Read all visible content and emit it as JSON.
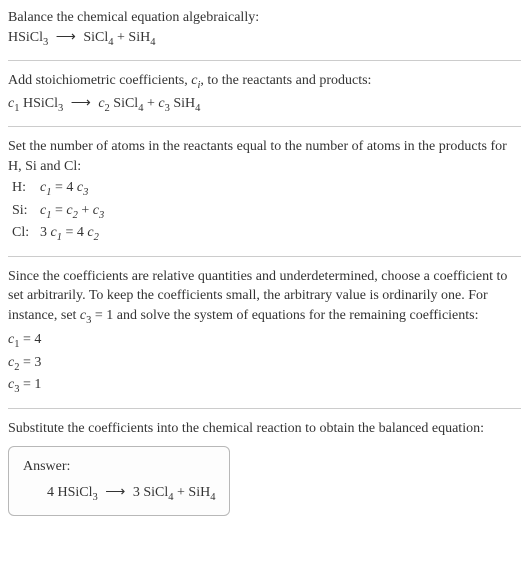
{
  "colors": {
    "text": "#333333",
    "divider": "#cccccc",
    "box_border": "#b8b8b8",
    "background": "#ffffff"
  },
  "typography": {
    "body_fontsize": 14,
    "sub_fontsize_ratio": 0.75,
    "font_family": "Georgia, serif"
  },
  "section1": {
    "line1": "Balance the chemical equation algebraically:",
    "eq_lhs": "HSiCl",
    "eq_lhs_sub": "3",
    "arrow": "⟶",
    "eq_rhs1": "SiCl",
    "eq_rhs1_sub": "4",
    "plus": " + ",
    "eq_rhs2": "SiH",
    "eq_rhs2_sub": "4"
  },
  "section2": {
    "line1a": "Add stoichiometric coefficients, ",
    "line1b": "c",
    "line1c": ", to the reactants and products:",
    "c1": "c",
    "c1sub": "1",
    "sp1": " HSiCl",
    "sp1sub": "3",
    "arrow": "⟶",
    "c2": "c",
    "c2sub": "2",
    "sp2": " SiCl",
    "sp2sub": "4",
    "plus": " + ",
    "c3": "c",
    "c3sub": "3",
    "sp3": " SiH",
    "sp3sub": "4"
  },
  "section3": {
    "line1": "Set the number of atoms in the reactants equal to the number of atoms in the products for H, Si and Cl:",
    "rows": [
      {
        "label": "H:",
        "c_left": "c",
        "c_left_sub": "1",
        "eq": " = 4",
        "c_right": "c",
        "c_right_sub": "3",
        "extra": ""
      },
      {
        "label": "Si:",
        "c_left": "c",
        "c_left_sub": "1",
        "eq": " = ",
        "c_right": "c",
        "c_right_sub": "2",
        "extra_plus": " + ",
        "c_right2": "c",
        "c_right2_sub": "3"
      },
      {
        "label": "Cl:",
        "pre": "3",
        "c_left": "c",
        "c_left_sub": "1",
        "eq": " = 4",
        "c_right": "c",
        "c_right_sub": "2",
        "extra": ""
      }
    ]
  },
  "section4": {
    "line1a": "Since the coefficients are relative quantities and underdetermined, choose a coefficient to set arbitrarily. To keep the coefficients small, the arbitrary value is ordinarily one. For instance, set ",
    "line1b": "c",
    "line1b_sub": "3",
    "line1c": " = 1 and solve the system of equations for the remaining coefficients:",
    "coeffs": [
      {
        "c": "c",
        "sub": "1",
        "val": " = 4"
      },
      {
        "c": "c",
        "sub": "2",
        "val": " = 3"
      },
      {
        "c": "c",
        "sub": "3",
        "val": " = 1"
      }
    ]
  },
  "section5": {
    "line1": "Substitute the coefficients into the chemical reaction to obtain the balanced equation:",
    "answer_label": "Answer:",
    "eq_c1": "4 HSiCl",
    "eq_c1_sub": "3",
    "arrow": "⟶",
    "eq_c2": "3 SiCl",
    "eq_c2_sub": "4",
    "plus": " + ",
    "eq_c3": "SiH",
    "eq_c3_sub": "4"
  }
}
